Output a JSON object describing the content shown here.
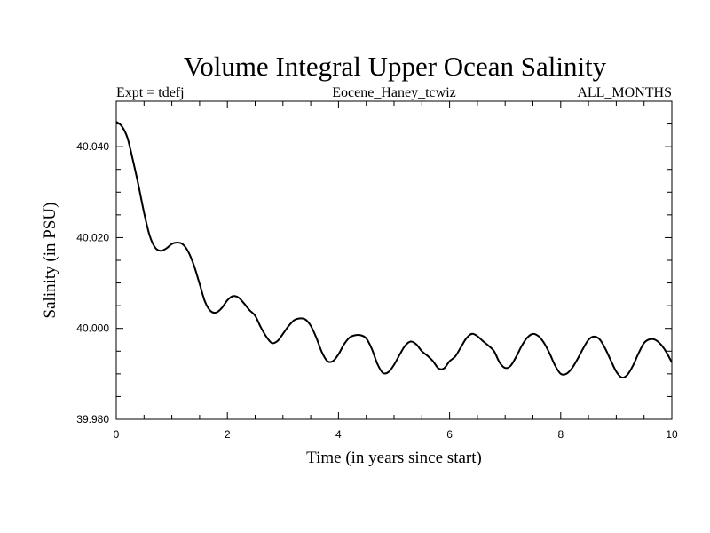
{
  "chart_data": {
    "type": "line",
    "title": "Volume Integral Upper Ocean Salinity",
    "subtitle_left": "Expt = tdefj",
    "subtitle_center": "Eocene_Haney_tcwiz",
    "subtitle_right": "ALL_MONTHS",
    "xlabel": "Time (in years since start)",
    "ylabel": "Salinity (in PSU)",
    "xlim": [
      0,
      10
    ],
    "ylim": [
      39.98,
      40.05
    ],
    "x_ticks": [
      0,
      2,
      4,
      6,
      8,
      10
    ],
    "x_tick_labels": [
      "0",
      "2",
      "4",
      "6",
      "8",
      "10"
    ],
    "y_ticks": [
      39.98,
      40.0,
      40.02,
      40.04
    ],
    "y_tick_labels": [
      "39.980",
      "40.000",
      "40.020",
      "40.040"
    ],
    "grid": false,
    "series": [
      {
        "color": "#000000",
        "x": [
          0.0,
          0.1,
          0.2,
          0.3,
          0.4,
          0.5,
          0.6,
          0.7,
          0.8,
          0.9,
          1.0,
          1.1,
          1.2,
          1.3,
          1.4,
          1.5,
          1.6,
          1.7,
          1.8,
          1.9,
          2.0,
          2.1,
          2.2,
          2.3,
          2.4,
          2.5,
          2.6,
          2.7,
          2.8,
          2.9,
          3.0,
          3.1,
          3.2,
          3.3,
          3.4,
          3.5,
          3.6,
          3.7,
          3.8,
          3.9,
          4.0,
          4.1,
          4.2,
          4.3,
          4.4,
          4.5,
          4.6,
          4.7,
          4.8,
          4.9,
          5.0,
          5.1,
          5.2,
          5.3,
          5.4,
          5.5,
          5.6,
          5.7,
          5.8,
          5.9,
          6.0,
          6.1,
          6.2,
          6.3,
          6.4,
          6.5,
          6.6,
          6.7,
          6.8,
          6.9,
          7.0,
          7.1,
          7.2,
          7.3,
          7.4,
          7.5,
          7.6,
          7.7,
          7.8,
          7.9,
          8.0,
          8.1,
          8.2,
          8.3,
          8.4,
          8.5,
          8.6,
          8.7,
          8.8,
          8.9,
          9.0,
          9.1,
          9.2,
          9.3,
          9.4,
          9.5,
          9.6,
          9.7,
          9.8,
          9.9,
          10.0
        ],
        "y": [
          40.0455,
          40.0445,
          40.042,
          40.037,
          40.0315,
          40.0255,
          40.0205,
          40.0178,
          40.0171,
          40.0176,
          40.0186,
          40.0189,
          40.0185,
          40.0168,
          40.0138,
          40.0098,
          40.0058,
          40.0038,
          40.0035,
          40.0045,
          40.0062,
          40.0071,
          40.0068,
          40.0055,
          40.004,
          40.0028,
          40.0003,
          39.9982,
          39.9968,
          39.9972,
          39.9988,
          40.0005,
          40.0018,
          40.0022,
          40.002,
          40.0006,
          39.998,
          39.9948,
          39.9928,
          39.9928,
          39.9943,
          39.9965,
          39.998,
          39.9985,
          39.9985,
          39.9978,
          39.9955,
          39.9922,
          39.9902,
          39.9904,
          39.992,
          39.9942,
          39.9962,
          39.9971,
          39.9965,
          39.995,
          39.994,
          39.9928,
          39.9912,
          39.9912,
          39.9928,
          39.9938,
          39.9958,
          39.9978,
          39.9988,
          39.9983,
          39.9972,
          39.9962,
          39.995,
          39.9925,
          39.9913,
          39.9918,
          39.9938,
          39.9962,
          39.998,
          39.9988,
          39.9983,
          39.9968,
          39.9945,
          39.9918,
          39.99,
          39.99,
          39.9912,
          39.9932,
          39.9955,
          39.9975,
          39.9982,
          39.9976,
          39.9956,
          39.993,
          39.9905,
          39.9892,
          39.9898,
          39.9918,
          39.9945,
          39.9968,
          39.9976,
          39.9975,
          39.9965,
          39.9948,
          39.9925
        ]
      }
    ]
  }
}
